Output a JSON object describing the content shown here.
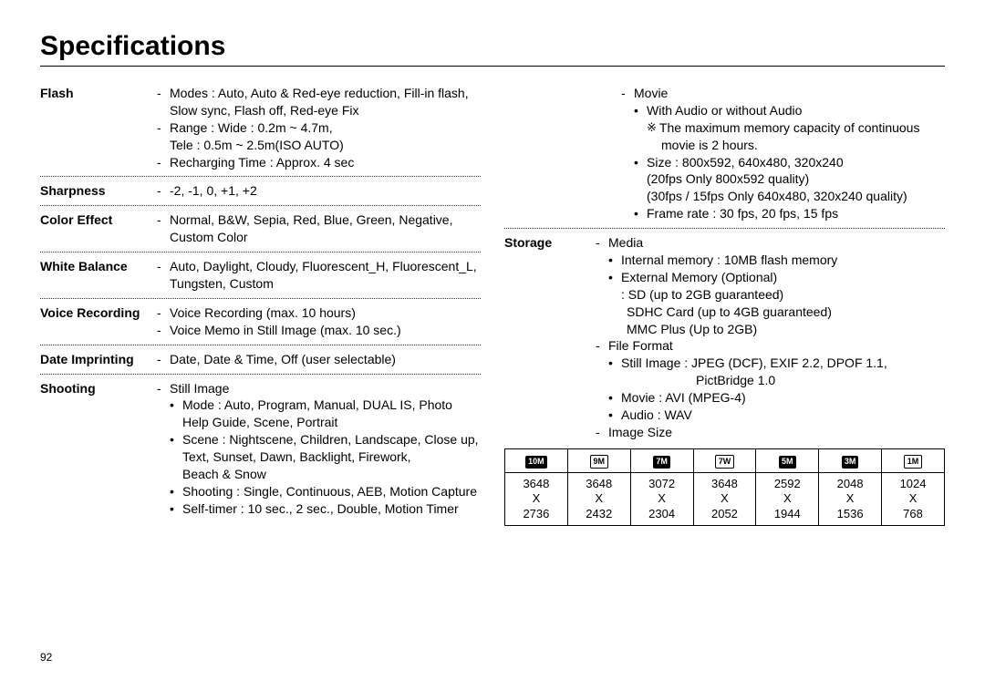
{
  "title": "Specifications",
  "page_number": "92",
  "left": {
    "flash": {
      "label": "Flash",
      "l1": "Modes : Auto, Auto & Red-eye reduction, Fill-in flash,",
      "l1b": "Slow sync, Flash off, Red-eye Fix",
      "l2": "Range : Wide : 0.2m ~ 4.7m,",
      "l2b": "Tele : 0.5m ~ 2.5m(ISO AUTO)",
      "l3": "Recharging Time : Approx. 4 sec"
    },
    "sharpness": {
      "label": "Sharpness",
      "l1": "-2, -1, 0, +1, +2"
    },
    "colorEffect": {
      "label": "Color Effect",
      "l1": "Normal, B&W, Sepia, Red, Blue, Green, Negative,",
      "l1b": "Custom Color"
    },
    "whiteBalance": {
      "label": "White Balance",
      "l1": "Auto, Daylight, Cloudy, Fluorescent_H, Fluorescent_L,",
      "l1b": "Tungsten, Custom"
    },
    "voiceRecording": {
      "label": "Voice Recording",
      "l1": "Voice Recording (max. 10 hours)",
      "l2": "Voice Memo in Still Image (max. 10 sec.)"
    },
    "dateImprinting": {
      "label": "Date Imprinting",
      "l1": "Date, Date & Time, Off (user selectable)"
    },
    "shooting": {
      "label": "Shooting",
      "l1": "Still Image",
      "b1": "Mode : Auto, Program, Manual, DUAL IS, Photo",
      "b1b": "Help Guide, Scene, Portrait",
      "b2": "Scene : Nightscene, Children, Landscape, Close up,",
      "b2b": "Text, Sunset, Dawn, Backlight, Firework,",
      "b2c": "Beach & Snow",
      "b3": "Shooting : Single, Continuous, AEB, Motion Capture",
      "b4": "Self-timer : 10 sec., 2 sec., Double, Motion Timer"
    }
  },
  "right": {
    "movie": {
      "l1": "Movie",
      "b1": "With Audio or without Audio",
      "note": "The maximum memory capacity of continuous",
      "note2": "movie is 2 hours.",
      "b2": "Size : 800x592, 640x480, 320x240",
      "b2b": "(20fps Only 800x592 quality)",
      "b2c": "(30fps / 15fps Only 640x480, 320x240 quality)",
      "b3": "Frame rate : 30 fps, 20 fps, 15 fps"
    },
    "storage": {
      "label": "Storage",
      "l1": "Media",
      "b1": "Internal memory : 10MB flash memory",
      "b2": "External Memory (Optional)",
      "b2b": ": SD (up to 2GB guaranteed)",
      "b2c": "SDHC Card (up to 4GB guaranteed)",
      "b2d": "MMC Plus (Up to 2GB)",
      "l2": "File Format",
      "b3": "Still Image : JPEG (DCF), EXIF 2.2, DPOF 1.1,",
      "b3b": "PictBridge 1.0",
      "b4": "Movie : AVI (MPEG-4)",
      "b5": "Audio : WAV",
      "l3": "Image Size"
    }
  },
  "table": {
    "headers": [
      "10M",
      "9M",
      "7M",
      "7W",
      "5M",
      "3M",
      "1M"
    ],
    "header_styles": [
      "solid",
      "outline",
      "solid",
      "outline",
      "solid",
      "solid",
      "outline"
    ],
    "rows": [
      [
        "3648",
        "3648",
        "3072",
        "3648",
        "2592",
        "2048",
        "1024"
      ],
      [
        "X",
        "X",
        "X",
        "X",
        "X",
        "X",
        "X"
      ],
      [
        "2736",
        "2432",
        "2304",
        "2052",
        "1944",
        "1536",
        "768"
      ]
    ]
  }
}
